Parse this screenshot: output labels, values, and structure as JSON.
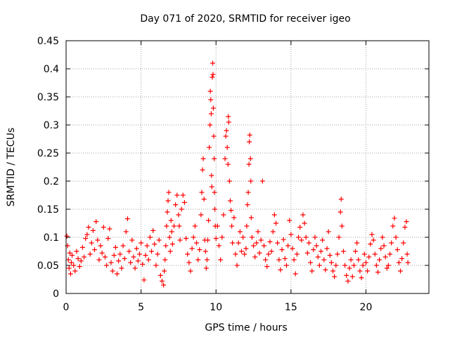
{
  "chart_data": {
    "type": "scatter",
    "title": "Day 071 of 2020, SRMTID for receiver igeo",
    "xlabel": "GPS time / hours",
    "ylabel": "SRMTID / TECUs",
    "xlim": [
      0,
      24.2
    ],
    "ylim": [
      0,
      0.45
    ],
    "x_ticks": [
      0,
      5,
      10,
      15,
      20
    ],
    "x_tick_labels": [
      "0",
      "5",
      "10",
      "15",
      "20"
    ],
    "y_ticks": [
      0,
      0.05,
      0.1,
      0.15,
      0.2,
      0.25,
      0.3,
      0.35,
      0.4,
      0.45
    ],
    "y_tick_labels": [
      "0",
      "0.05",
      "0.1",
      "0.15",
      "0.2",
      "0.25",
      "0.3",
      "0.35",
      "0.4",
      "0.45"
    ],
    "grid": true,
    "marker": "+",
    "color": "#ff0000",
    "series": [
      {
        "name": "SRMTID",
        "points": [
          [
            0.05,
            0.102
          ],
          [
            0.1,
            0.085
          ],
          [
            0.15,
            0.06
          ],
          [
            0.2,
            0.045
          ],
          [
            0.25,
            0.072
          ],
          [
            0.3,
            0.035
          ],
          [
            0.35,
            0.055
          ],
          [
            0.4,
            0.068
          ],
          [
            0.5,
            0.05
          ],
          [
            0.6,
            0.04
          ],
          [
            0.7,
            0.075
          ],
          [
            0.8,
            0.062
          ],
          [
            0.9,
            0.048
          ],
          [
            1.0,
            0.058
          ],
          [
            1.1,
            0.082
          ],
          [
            1.2,
            0.065
          ],
          [
            1.3,
            0.098
          ],
          [
            1.4,
            0.105
          ],
          [
            1.5,
            0.118
          ],
          [
            1.6,
            0.07
          ],
          [
            1.7,
            0.09
          ],
          [
            1.8,
            0.112
          ],
          [
            1.9,
            0.078
          ],
          [
            2.0,
            0.128
          ],
          [
            2.1,
            0.095
          ],
          [
            2.2,
            0.06
          ],
          [
            2.3,
            0.085
          ],
          [
            2.4,
            0.072
          ],
          [
            2.5,
            0.118
          ],
          [
            2.6,
            0.065
          ],
          [
            2.7,
            0.05
          ],
          [
            2.8,
            0.098
          ],
          [
            2.9,
            0.115
          ],
          [
            3.0,
            0.055
          ],
          [
            3.1,
            0.04
          ],
          [
            3.2,
            0.068
          ],
          [
            3.3,
            0.082
          ],
          [
            3.4,
            0.035
          ],
          [
            3.5,
            0.058
          ],
          [
            3.6,
            0.07
          ],
          [
            3.7,
            0.045
          ],
          [
            3.8,
            0.085
          ],
          [
            3.9,
            0.062
          ],
          [
            4.0,
            0.11
          ],
          [
            4.1,
            0.133
          ],
          [
            4.2,
            0.075
          ],
          [
            4.3,
            0.055
          ],
          [
            4.4,
            0.095
          ],
          [
            4.5,
            0.065
          ],
          [
            4.6,
            0.045
          ],
          [
            4.7,
            0.08
          ],
          [
            4.8,
            0.058
          ],
          [
            4.9,
            0.07
          ],
          [
            5.0,
            0.09
          ],
          [
            5.1,
            0.052
          ],
          [
            5.2,
            0.024
          ],
          [
            5.3,
            0.068
          ],
          [
            5.4,
            0.085
          ],
          [
            5.5,
            0.06
          ],
          [
            5.6,
            0.1
          ],
          [
            5.7,
            0.075
          ],
          [
            5.8,
            0.112
          ],
          [
            5.9,
            0.088
          ],
          [
            6.0,
            0.05
          ],
          [
            6.1,
            0.07
          ],
          [
            6.2,
            0.095
          ],
          [
            6.3,
            0.032
          ],
          [
            6.4,
            0.022
          ],
          [
            6.5,
            0.015
          ],
          [
            6.55,
            0.04
          ],
          [
            6.6,
            0.06
          ],
          [
            6.65,
            0.085
          ],
          [
            6.7,
            0.12
          ],
          [
            6.75,
            0.145
          ],
          [
            6.8,
            0.165
          ],
          [
            6.85,
            0.18
          ],
          [
            6.9,
            0.1
          ],
          [
            6.95,
            0.075
          ],
          [
            7.0,
            0.13
          ],
          [
            7.05,
            0.11
          ],
          [
            7.1,
            0.088
          ],
          [
            7.2,
            0.12
          ],
          [
            7.3,
            0.158
          ],
          [
            7.4,
            0.175
          ],
          [
            7.5,
            0.14
          ],
          [
            7.55,
            0.12
          ],
          [
            7.6,
            0.095
          ],
          [
            7.7,
            0.15
          ],
          [
            7.8,
            0.175
          ],
          [
            7.9,
            0.162
          ],
          [
            8.0,
            0.098
          ],
          [
            8.1,
            0.07
          ],
          [
            8.2,
            0.055
          ],
          [
            8.3,
            0.04
          ],
          [
            8.4,
            0.08
          ],
          [
            8.5,
            0.1
          ],
          [
            8.6,
            0.12
          ],
          [
            8.7,
            0.09
          ],
          [
            8.8,
            0.06
          ],
          [
            8.9,
            0.078
          ],
          [
            9.0,
            0.14
          ],
          [
            9.05,
            0.18
          ],
          [
            9.1,
            0.22
          ],
          [
            9.15,
            0.24
          ],
          [
            9.2,
            0.168
          ],
          [
            9.25,
            0.095
          ],
          [
            9.3,
            0.075
          ],
          [
            9.35,
            0.045
          ],
          [
            9.4,
            0.06
          ],
          [
            9.45,
            0.095
          ],
          [
            9.5,
            0.13
          ],
          [
            9.55,
            0.26
          ],
          [
            9.6,
            0.3
          ],
          [
            9.62,
            0.36
          ],
          [
            9.65,
            0.345
          ],
          [
            9.68,
            0.32
          ],
          [
            9.7,
            0.21
          ],
          [
            9.72,
            0.19
          ],
          [
            9.75,
            0.385
          ],
          [
            9.78,
            0.41
          ],
          [
            9.8,
            0.39
          ],
          [
            9.82,
            0.33
          ],
          [
            9.85,
            0.28
          ],
          [
            9.88,
            0.24
          ],
          [
            9.9,
            0.18
          ],
          [
            9.92,
            0.15
          ],
          [
            9.95,
            0.12
          ],
          [
            10.0,
            0.098
          ],
          [
            10.1,
            0.12
          ],
          [
            10.2,
            0.085
          ],
          [
            10.3,
            0.06
          ],
          [
            10.4,
            0.1
          ],
          [
            10.5,
            0.14
          ],
          [
            10.6,
            0.24
          ],
          [
            10.65,
            0.28
          ],
          [
            10.7,
            0.29
          ],
          [
            10.75,
            0.26
          ],
          [
            10.8,
            0.23
          ],
          [
            10.82,
            0.315
          ],
          [
            10.85,
            0.305
          ],
          [
            10.9,
            0.2
          ],
          [
            10.95,
            0.165
          ],
          [
            11.0,
            0.148
          ],
          [
            11.05,
            0.12
          ],
          [
            11.1,
            0.09
          ],
          [
            11.2,
            0.135
          ],
          [
            11.3,
            0.07
          ],
          [
            11.4,
            0.05
          ],
          [
            11.5,
            0.09
          ],
          [
            11.6,
            0.11
          ],
          [
            11.7,
            0.075
          ],
          [
            11.8,
            0.1
          ],
          [
            11.9,
            0.07
          ],
          [
            12.0,
            0.08
          ],
          [
            12.05,
            0.12
          ],
          [
            12.1,
            0.158
          ],
          [
            12.15,
            0.18
          ],
          [
            12.2,
            0.23
          ],
          [
            12.22,
            0.27
          ],
          [
            12.25,
            0.282
          ],
          [
            12.3,
            0.24
          ],
          [
            12.32,
            0.2
          ],
          [
            12.35,
            0.135
          ],
          [
            12.4,
            0.1
          ],
          [
            12.5,
            0.085
          ],
          [
            12.6,
            0.065
          ],
          [
            12.7,
            0.09
          ],
          [
            12.8,
            0.11
          ],
          [
            12.9,
            0.072
          ],
          [
            13.0,
            0.095
          ],
          [
            13.1,
            0.2
          ],
          [
            13.2,
            0.085
          ],
          [
            13.3,
            0.06
          ],
          [
            13.4,
            0.048
          ],
          [
            13.5,
            0.07
          ],
          [
            13.6,
            0.092
          ],
          [
            13.7,
            0.075
          ],
          [
            13.8,
            0.11
          ],
          [
            13.9,
            0.14
          ],
          [
            14.0,
            0.125
          ],
          [
            14.1,
            0.09
          ],
          [
            14.2,
            0.06
          ],
          [
            14.3,
            0.042
          ],
          [
            14.4,
            0.078
          ],
          [
            14.5,
            0.096
          ],
          [
            14.6,
            0.062
          ],
          [
            14.7,
            0.05
          ],
          [
            14.8,
            0.085
          ],
          [
            14.9,
            0.13
          ],
          [
            15.0,
            0.105
          ],
          [
            15.1,
            0.08
          ],
          [
            15.2,
            0.06
          ],
          [
            15.3,
            0.035
          ],
          [
            15.4,
            0.07
          ],
          [
            15.5,
            0.1
          ],
          [
            15.6,
            0.118
          ],
          [
            15.7,
            0.095
          ],
          [
            15.8,
            0.14
          ],
          [
            15.9,
            0.125
          ],
          [
            16.0,
            0.1
          ],
          [
            16.1,
            0.072
          ],
          [
            16.2,
            0.09
          ],
          [
            16.3,
            0.055
          ],
          [
            16.4,
            0.04
          ],
          [
            16.5,
            0.078
          ],
          [
            16.6,
            0.1
          ],
          [
            16.7,
            0.085
          ],
          [
            16.8,
            0.065
          ],
          [
            16.9,
            0.05
          ],
          [
            17.0,
            0.075
          ],
          [
            17.1,
            0.095
          ],
          [
            17.2,
            0.06
          ],
          [
            17.3,
            0.042
          ],
          [
            17.4,
            0.08
          ],
          [
            17.5,
            0.11
          ],
          [
            17.6,
            0.068
          ],
          [
            17.7,
            0.055
          ],
          [
            17.8,
            0.04
          ],
          [
            17.9,
            0.03
          ],
          [
            18.0,
            0.05
          ],
          [
            18.1,
            0.07
          ],
          [
            18.2,
            0.1
          ],
          [
            18.3,
            0.145
          ],
          [
            18.35,
            0.168
          ],
          [
            18.4,
            0.12
          ],
          [
            18.5,
            0.075
          ],
          [
            18.6,
            0.05
          ],
          [
            18.7,
            0.032
          ],
          [
            18.8,
            0.022
          ],
          [
            18.9,
            0.045
          ],
          [
            19.0,
            0.06
          ],
          [
            19.1,
            0.03
          ],
          [
            19.2,
            0.05
          ],
          [
            19.3,
            0.075
          ],
          [
            19.4,
            0.09
          ],
          [
            19.5,
            0.06
          ],
          [
            19.6,
            0.04
          ],
          [
            19.7,
            0.028
          ],
          [
            19.8,
            0.05
          ],
          [
            19.9,
            0.07
          ],
          [
            20.0,
            0.055
          ],
          [
            20.1,
            0.04
          ],
          [
            20.2,
            0.065
          ],
          [
            20.3,
            0.088
          ],
          [
            20.4,
            0.105
          ],
          [
            20.5,
            0.095
          ],
          [
            20.6,
            0.07
          ],
          [
            20.7,
            0.05
          ],
          [
            20.8,
            0.038
          ],
          [
            20.9,
            0.06
          ],
          [
            21.0,
            0.08
          ],
          [
            21.1,
            0.1
          ],
          [
            21.2,
            0.085
          ],
          [
            21.3,
            0.065
          ],
          [
            21.4,
            0.045
          ],
          [
            21.5,
            0.05
          ],
          [
            21.6,
            0.07
          ],
          [
            21.7,
            0.09
          ],
          [
            21.8,
            0.12
          ],
          [
            21.9,
            0.134
          ],
          [
            22.0,
            0.1
          ],
          [
            22.1,
            0.078
          ],
          [
            22.2,
            0.055
          ],
          [
            22.3,
            0.04
          ],
          [
            22.4,
            0.062
          ],
          [
            22.5,
            0.09
          ],
          [
            22.6,
            0.118
          ],
          [
            22.7,
            0.128
          ],
          [
            22.75,
            0.07
          ],
          [
            22.8,
            0.055
          ]
        ]
      }
    ]
  }
}
